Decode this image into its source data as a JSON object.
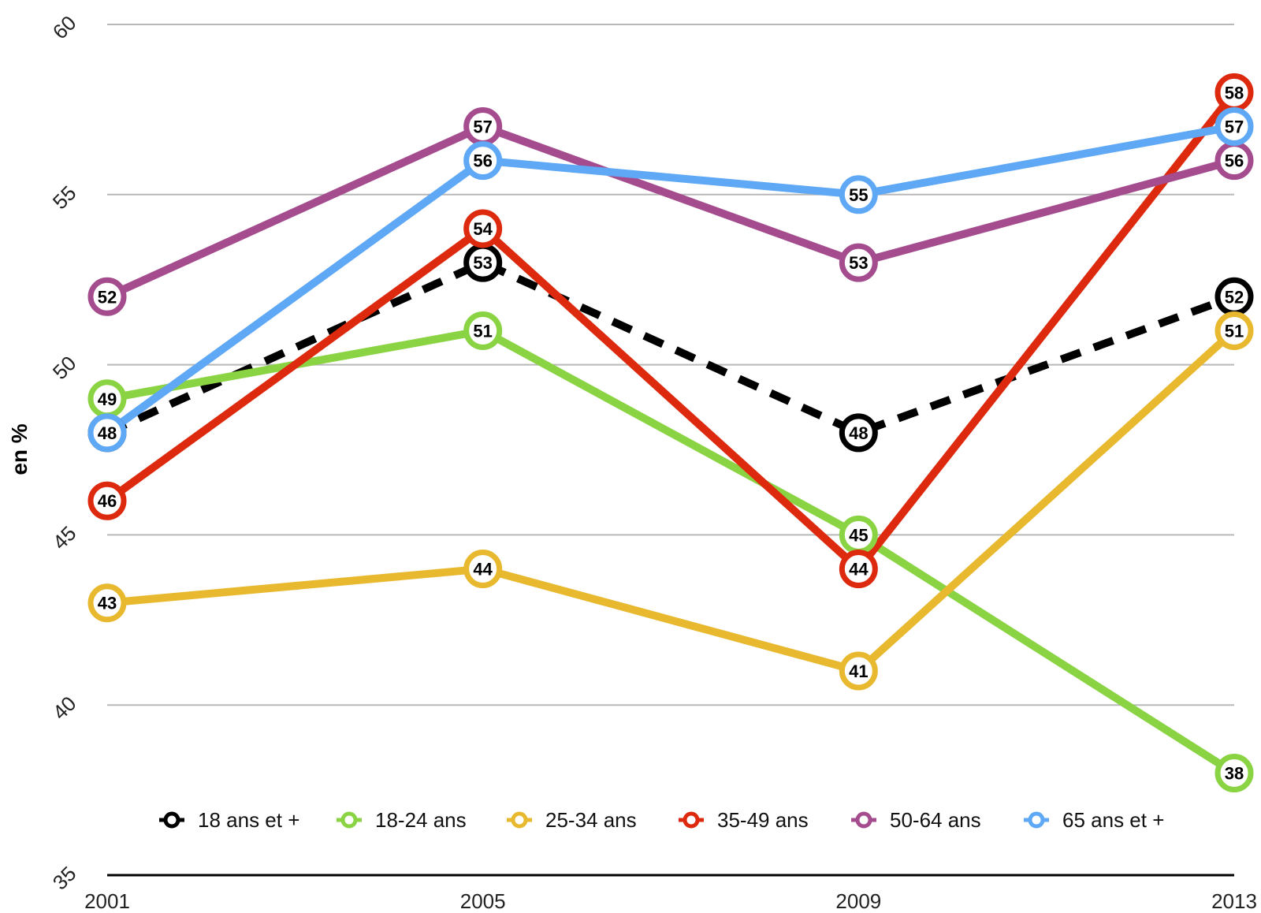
{
  "chart_data": {
    "type": "line",
    "title": "",
    "xlabel": "",
    "ylabel": "en %",
    "x": [
      "2001",
      "2005",
      "2009",
      "2013"
    ],
    "ylim": [
      35,
      60
    ],
    "yticks": [
      35,
      40,
      45,
      50,
      55,
      60
    ],
    "grid": true,
    "legend_position": "bottom",
    "series": [
      {
        "name": "18 ans et +",
        "color": "#000000",
        "dashed": true,
        "values": [
          48,
          53,
          48,
          52
        ]
      },
      {
        "name": "18-24 ans",
        "color": "#8ad444",
        "dashed": false,
        "values": [
          49,
          51,
          45,
          38
        ]
      },
      {
        "name": "25-34 ans",
        "color": "#e8b92e",
        "dashed": false,
        "values": [
          43,
          44,
          41,
          51
        ]
      },
      {
        "name": "35-49 ans",
        "color": "#dd2a0e",
        "dashed": false,
        "values": [
          46,
          54,
          44,
          58
        ]
      },
      {
        "name": "50-64 ans",
        "color": "#a44c8e",
        "dashed": false,
        "values": [
          52,
          57,
          53,
          56
        ]
      },
      {
        "name": "65 ans et +",
        "color": "#5ea8f5",
        "dashed": false,
        "values": [
          48,
          56,
          55,
          57
        ]
      }
    ]
  }
}
